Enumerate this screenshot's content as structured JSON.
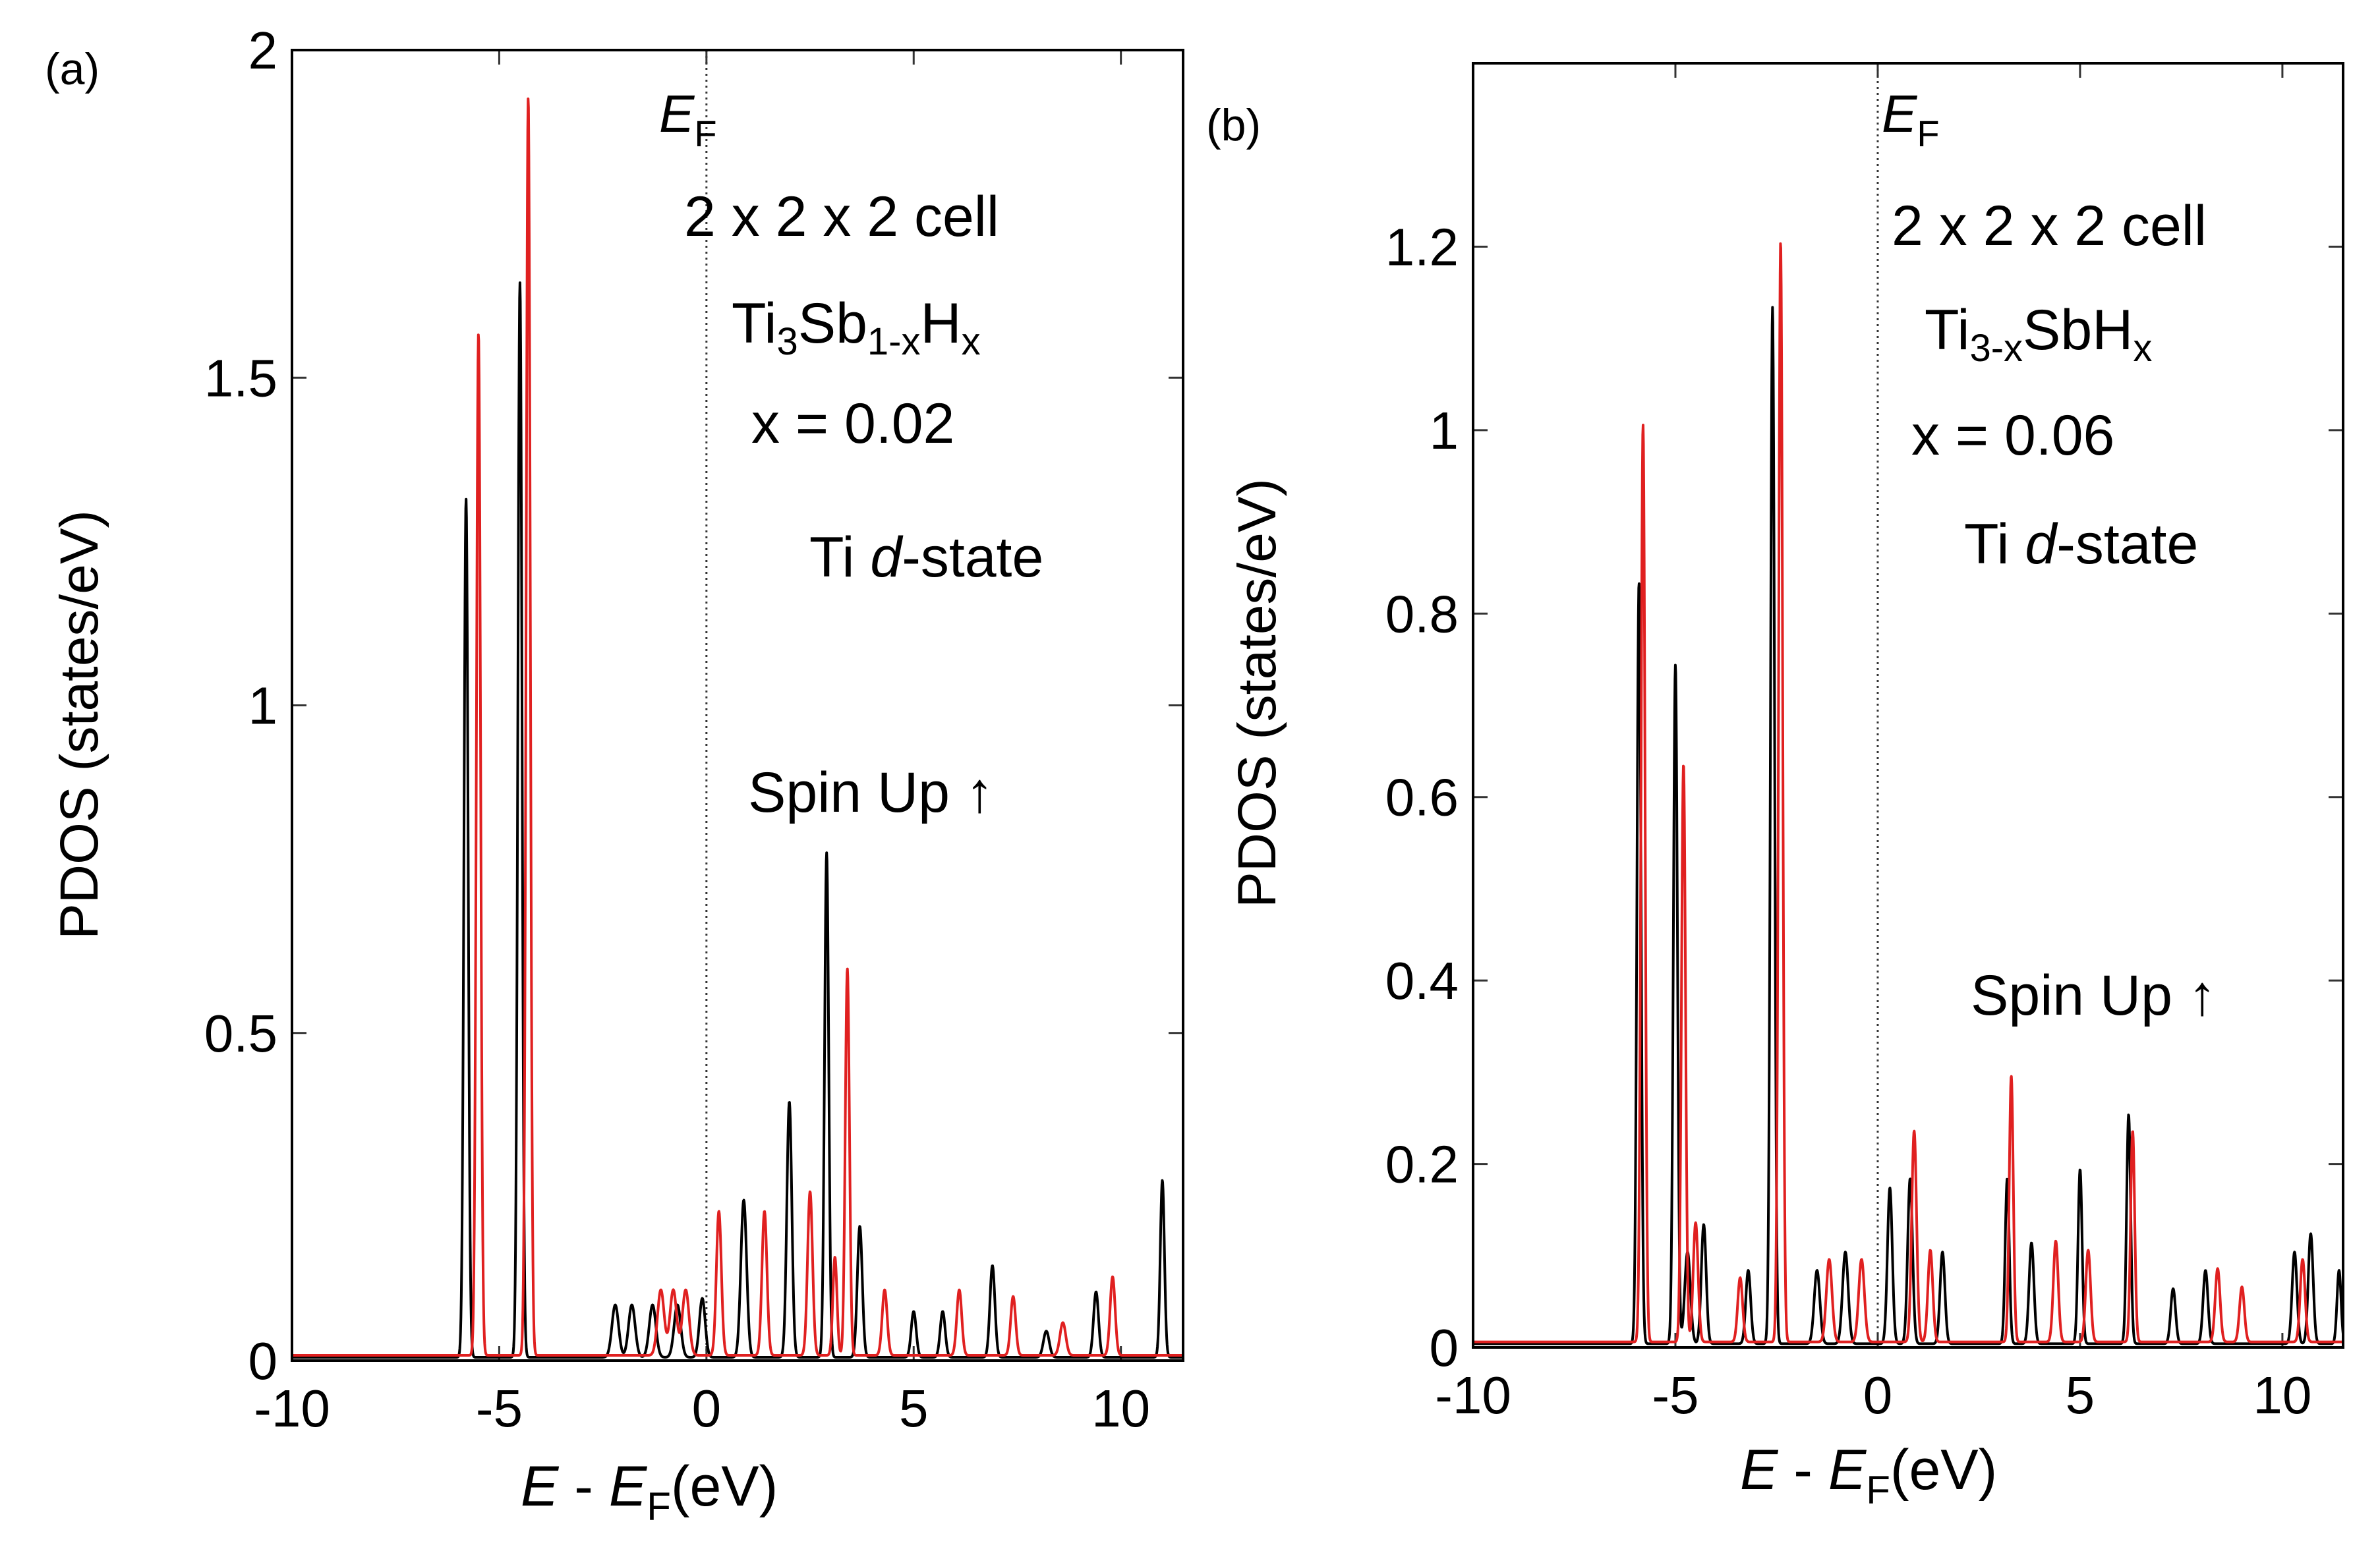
{
  "chart_data": [
    {
      "type": "line",
      "panel_label": "(a)",
      "xlabel": "E - EF (eV)",
      "ylabel": "PDOS (states/eV)",
      "xlim": [
        -10,
        11.5
      ],
      "ylim": [
        0,
        2
      ],
      "xticks": [
        -10,
        -5,
        0,
        5,
        10
      ],
      "yticks": [
        0,
        0.5,
        1,
        1.5,
        2
      ],
      "xtick_labels": [
        "-10",
        "-5",
        "0",
        "5",
        "10"
      ],
      "ytick_labels": [
        "0",
        "0.5",
        "1",
        "1.5",
        "2"
      ],
      "fermi_label": "EF",
      "annotations": {
        "cell": "2 x 2 x 2 cell",
        "formula": "Ti3Sb1-xHx",
        "x_value": "x = 0.02",
        "state": "Ti d-state",
        "spin": "Spin Up ↑"
      },
      "series": [
        {
          "name": "black",
          "color": "#000000",
          "base": 0.005,
          "peaks": [
            [
              -5.8,
              1.31,
              0.05
            ],
            [
              -4.5,
              1.64,
              0.05
            ],
            [
              -2.2,
              0.08,
              0.08
            ],
            [
              -1.8,
              0.08,
              0.08
            ],
            [
              -1.3,
              0.08,
              0.08
            ],
            [
              -0.7,
              0.08,
              0.08
            ],
            [
              -0.1,
              0.09,
              0.07
            ],
            [
              0.9,
              0.24,
              0.07
            ],
            [
              2.0,
              0.39,
              0.06
            ],
            [
              2.9,
              0.77,
              0.05
            ],
            [
              3.7,
              0.2,
              0.06
            ],
            [
              5.0,
              0.07,
              0.06
            ],
            [
              5.7,
              0.07,
              0.06
            ],
            [
              6.9,
              0.14,
              0.06
            ],
            [
              8.2,
              0.04,
              0.07
            ],
            [
              9.4,
              0.1,
              0.06
            ],
            [
              11.0,
              0.27,
              0.05
            ]
          ]
        },
        {
          "name": "red",
          "color": "#e02020",
          "base": 0.008,
          "peaks": [
            [
              -5.5,
              1.56,
              0.05
            ],
            [
              -4.3,
              1.92,
              0.05
            ],
            [
              -1.1,
              0.1,
              0.08
            ],
            [
              -0.8,
              0.1,
              0.08
            ],
            [
              -0.5,
              0.1,
              0.08
            ],
            [
              0.3,
              0.22,
              0.06
            ],
            [
              1.4,
              0.22,
              0.06
            ],
            [
              2.5,
              0.25,
              0.06
            ],
            [
              3.1,
              0.15,
              0.05
            ],
            [
              3.4,
              0.59,
              0.05
            ],
            [
              4.3,
              0.1,
              0.06
            ],
            [
              6.1,
              0.1,
              0.06
            ],
            [
              7.4,
              0.09,
              0.06
            ],
            [
              8.6,
              0.05,
              0.07
            ],
            [
              9.8,
              0.12,
              0.06
            ]
          ]
        }
      ]
    },
    {
      "type": "line",
      "panel_label": "(b)",
      "xlabel": "E - EF (eV)",
      "ylabel": "PDOS (states/eV)",
      "xlim": [
        -10,
        11.5
      ],
      "ylim": [
        0,
        1.4
      ],
      "xticks": [
        -10,
        -5,
        0,
        5,
        10
      ],
      "yticks": [
        0,
        0.2,
        0.4,
        0.6,
        0.8,
        1,
        1.2
      ],
      "xtick_labels": [
        "-10",
        "-5",
        "0",
        "5",
        "10"
      ],
      "ytick_labels": [
        "0",
        "0.2",
        "0.4",
        "0.6",
        "0.8",
        "1",
        "1.2"
      ],
      "fermi_label": "EF",
      "annotations": {
        "cell": "2 x 2 x 2 cell",
        "formula": "Ti3-xSbHx",
        "x_value": "x = 0.06",
        "state": "Ti d-state",
        "spin": "Spin Up ↑"
      },
      "series": [
        {
          "name": "black",
          "color": "#000000",
          "base": 0.004,
          "peaks": [
            [
              -5.9,
              0.83,
              0.05
            ],
            [
              -5.0,
              0.74,
              0.05
            ],
            [
              -4.7,
              0.1,
              0.07
            ],
            [
              -4.3,
              0.13,
              0.06
            ],
            [
              -3.2,
              0.08,
              0.06
            ],
            [
              -2.6,
              1.13,
              0.05
            ],
            [
              -1.5,
              0.08,
              0.07
            ],
            [
              -0.8,
              0.1,
              0.07
            ],
            [
              0.3,
              0.17,
              0.06
            ],
            [
              0.8,
              0.18,
              0.06
            ],
            [
              1.6,
              0.1,
              0.06
            ],
            [
              3.2,
              0.18,
              0.05
            ],
            [
              3.8,
              0.11,
              0.06
            ],
            [
              5.0,
              0.19,
              0.05
            ],
            [
              6.2,
              0.25,
              0.05
            ],
            [
              7.3,
              0.06,
              0.06
            ],
            [
              8.1,
              0.08,
              0.06
            ],
            [
              10.3,
              0.1,
              0.06
            ],
            [
              10.7,
              0.12,
              0.06
            ],
            [
              11.4,
              0.08,
              0.05
            ]
          ]
        },
        {
          "name": "red",
          "color": "#e02020",
          "base": 0.006,
          "peaks": [
            [
              -5.8,
              1.0,
              0.05
            ],
            [
              -4.8,
              0.63,
              0.05
            ],
            [
              -4.5,
              0.13,
              0.06
            ],
            [
              -3.4,
              0.07,
              0.06
            ],
            [
              -2.4,
              1.2,
              0.05
            ],
            [
              -1.2,
              0.09,
              0.07
            ],
            [
              -0.4,
              0.09,
              0.07
            ],
            [
              0.9,
              0.23,
              0.06
            ],
            [
              1.3,
              0.1,
              0.06
            ],
            [
              3.3,
              0.29,
              0.05
            ],
            [
              4.4,
              0.11,
              0.06
            ],
            [
              5.2,
              0.1,
              0.06
            ],
            [
              6.3,
              0.23,
              0.05
            ],
            [
              8.4,
              0.08,
              0.06
            ],
            [
              9.0,
              0.06,
              0.06
            ],
            [
              10.5,
              0.09,
              0.06
            ]
          ]
        }
      ]
    }
  ]
}
